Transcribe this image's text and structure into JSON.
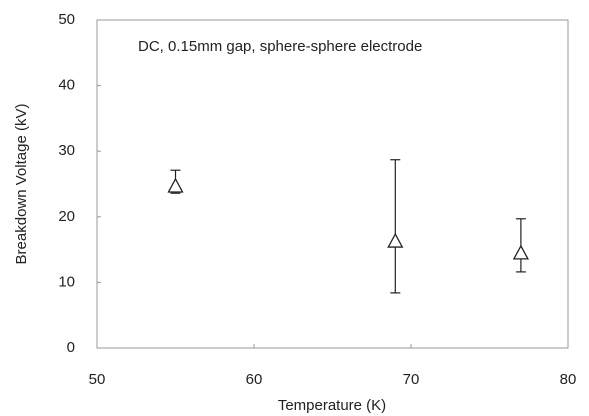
{
  "chart_data": {
    "type": "scatter",
    "annotation": "DC, 0.15mm gap, sphere-sphere electrode",
    "xlabel": "Temperature (K)",
    "ylabel": "Breakdown Voltage (kV)",
    "series": [
      {
        "x": [
          55,
          69,
          77
        ],
        "values": [
          24.7,
          16.3,
          14.5
        ],
        "lower": [
          23.6,
          8.4,
          11.6
        ],
        "upper": [
          27.1,
          28.7,
          19.7
        ],
        "color": "#222222"
      }
    ],
    "xlim": [
      50,
      80
    ],
    "xticks": [
      50,
      60,
      70,
      80
    ],
    "ylim": [
      0,
      50
    ],
    "yticks": [
      0,
      10,
      20,
      30,
      40,
      50
    ],
    "grid": false
  }
}
